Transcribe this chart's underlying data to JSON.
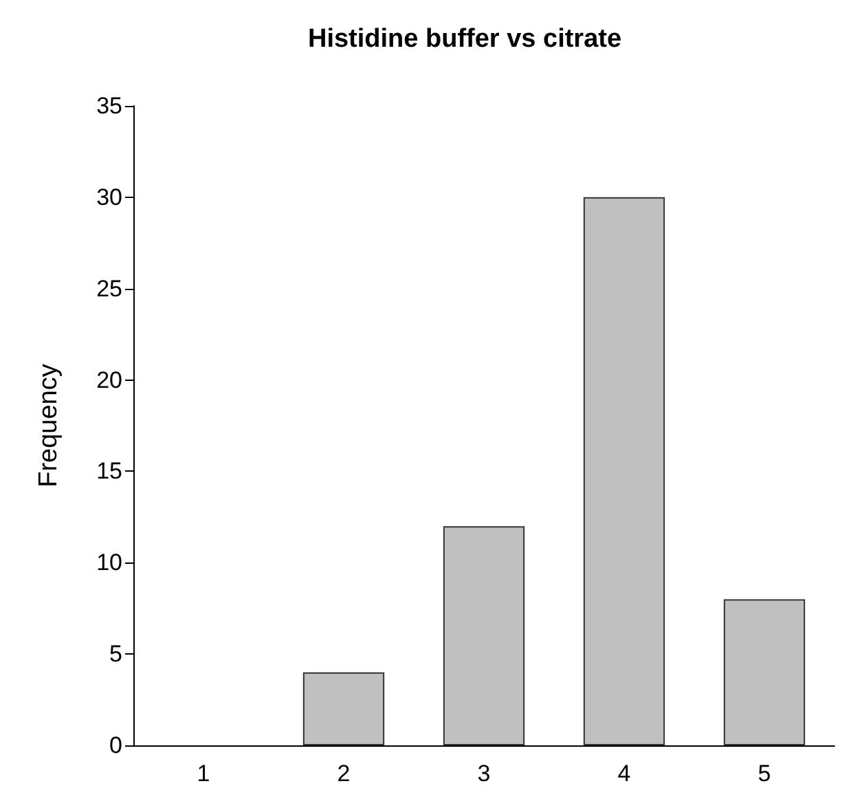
{
  "chart_data": {
    "type": "bar",
    "title": "Histidine buffer vs citrate",
    "ylabel": "Frequency",
    "categories": [
      "1",
      "2",
      "3",
      "4",
      "5"
    ],
    "values": [
      0,
      4,
      12,
      30,
      8
    ],
    "color": "#c0c0c0",
    "ylim": [
      0,
      35
    ],
    "yticks": [
      0,
      5,
      10,
      15,
      20,
      25,
      30,
      35
    ],
    "grid": false
  }
}
